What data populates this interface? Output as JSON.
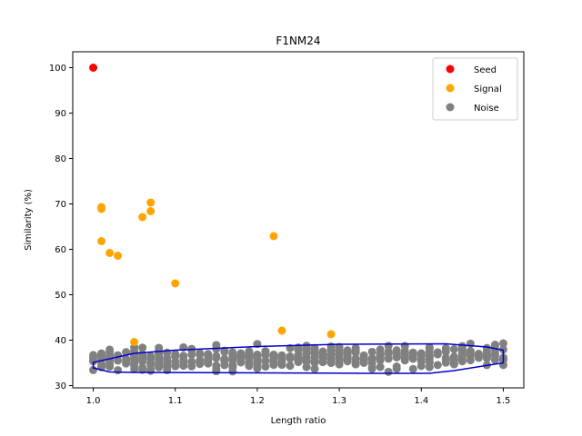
{
  "chart_data": {
    "type": "scatter",
    "title": "F1NM24",
    "xlabel": "Length ratio",
    "ylabel": "Similarity (%)",
    "xlim": [
      0.975,
      1.525
    ],
    "ylim": [
      29.5,
      103.5
    ],
    "xticks": [
      1.0,
      1.1,
      1.2,
      1.3,
      1.4,
      1.5
    ],
    "xtick_labels": [
      "1.0",
      "1.1",
      "1.2",
      "1.3",
      "1.4",
      "1.5"
    ],
    "yticks": [
      30,
      40,
      50,
      60,
      70,
      80,
      90,
      100
    ],
    "ytick_labels": [
      "30",
      "40",
      "50",
      "60",
      "70",
      "80",
      "90",
      "100"
    ],
    "grid": false,
    "legend": {
      "position": "top-right",
      "entries": [
        "Seed",
        "Signal",
        "Noise"
      ]
    },
    "series": [
      {
        "name": "Seed",
        "color": "#ff0000",
        "points": [
          [
            1.0,
            100.0
          ]
        ]
      },
      {
        "name": "Signal",
        "color": "#ffa500",
        "points": [
          [
            1.01,
            69.3
          ],
          [
            1.01,
            68.9
          ],
          [
            1.01,
            61.8
          ],
          [
            1.02,
            59.2
          ],
          [
            1.03,
            58.6
          ],
          [
            1.06,
            67.1
          ],
          [
            1.07,
            70.3
          ],
          [
            1.07,
            68.4
          ],
          [
            1.1,
            52.5
          ],
          [
            1.22,
            62.9
          ],
          [
            1.05,
            39.6
          ],
          [
            1.23,
            42.1
          ],
          [
            1.29,
            41.3
          ]
        ]
      },
      {
        "name": "Noise",
        "color": "#808080",
        "x_range": [
          1.0,
          1.5
        ],
        "y_range": [
          32.5,
          39.3
        ],
        "count": 420,
        "seed": 24
      }
    ],
    "hull": {
      "color": "#0000cd",
      "points": [
        [
          1.0,
          33.9
        ],
        [
          1.0,
          35.1
        ],
        [
          1.05,
          37.1
        ],
        [
          1.1,
          37.8
        ],
        [
          1.2,
          38.6
        ],
        [
          1.3,
          39.1
        ],
        [
          1.43,
          39.2
        ],
        [
          1.48,
          38.5
        ],
        [
          1.5,
          37.8
        ],
        [
          1.5,
          35.0
        ],
        [
          1.44,
          33.3
        ],
        [
          1.41,
          32.7
        ],
        [
          1.33,
          32.7
        ],
        [
          1.2,
          32.8
        ],
        [
          1.05,
          32.9
        ],
        [
          1.02,
          33.0
        ]
      ]
    }
  }
}
